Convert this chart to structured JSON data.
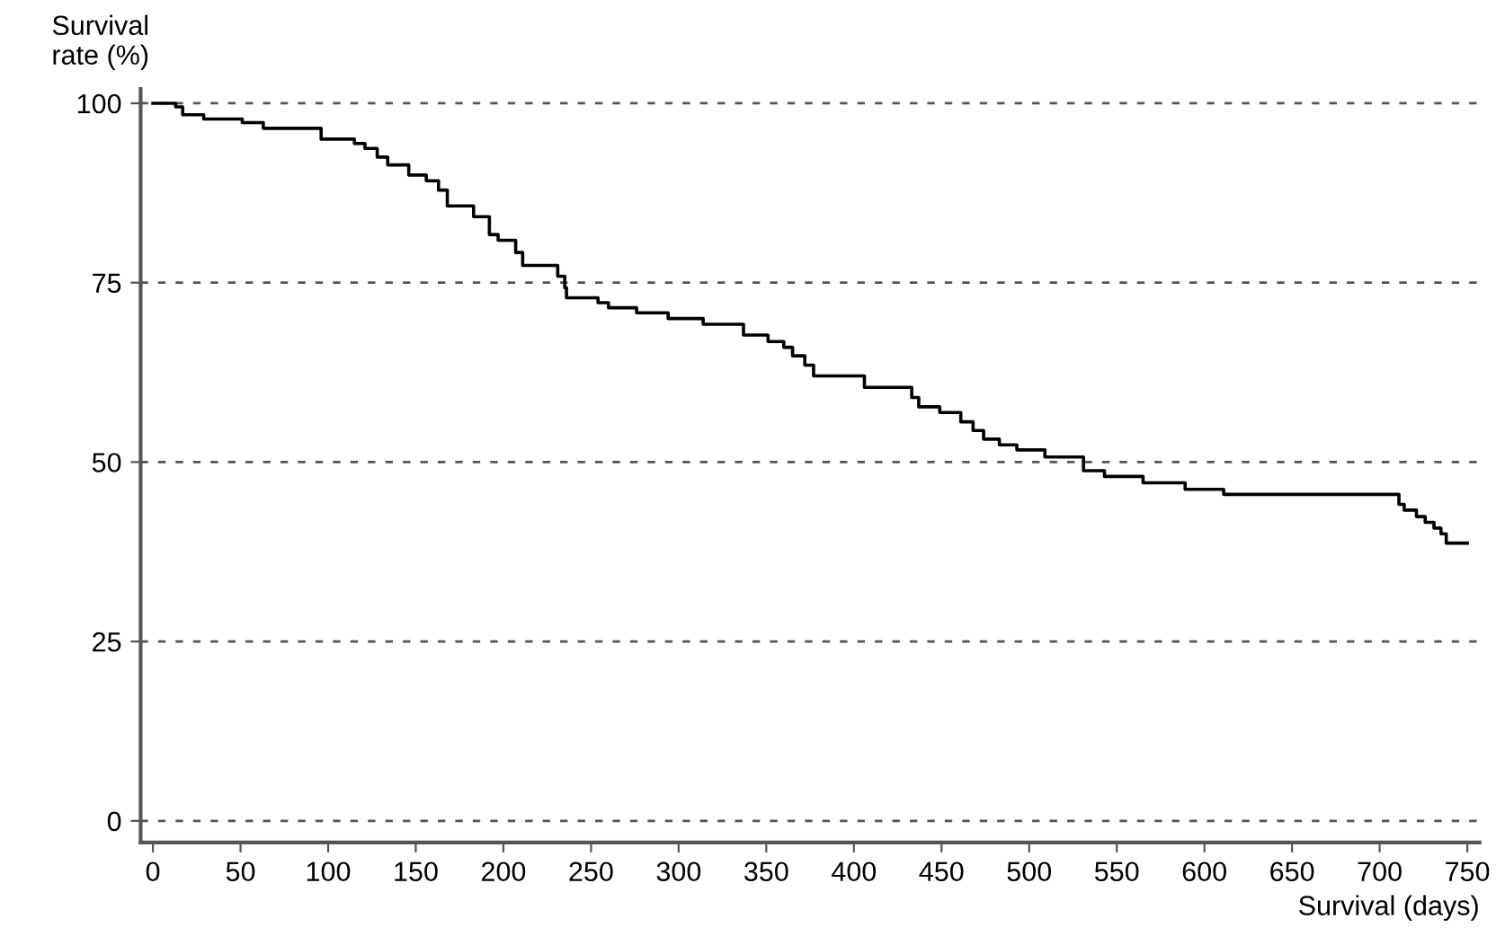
{
  "chart_data": {
    "type": "step",
    "xlabel": "Survival (days)",
    "ylabel": "Survival\nrate (%)",
    "xlim": [
      -7,
      757
    ],
    "ylim": [
      -3,
      102
    ],
    "xticks": [
      0,
      50,
      100,
      150,
      200,
      250,
      300,
      350,
      400,
      450,
      500,
      550,
      600,
      650,
      700,
      750
    ],
    "yticks": [
      0,
      25,
      50,
      75,
      100
    ],
    "grid": "y",
    "line_style": "solid",
    "marker": "none",
    "series": [
      {
        "color": "#000000",
        "x": [
          0,
          13,
          17,
          21,
          29,
          51,
          63,
          96,
          115,
          121,
          128,
          134,
          146,
          156,
          163,
          168,
          183,
          192,
          197,
          207,
          211,
          231,
          235,
          236,
          254,
          260,
          276,
          294,
          314,
          337,
          351,
          360,
          365,
          372,
          377,
          406,
          433,
          437,
          449,
          461,
          468,
          474,
          483,
          493,
          509,
          531,
          543,
          565,
          589,
          611,
          707,
          711,
          714,
          721,
          726,
          731,
          735,
          738,
          750
        ],
        "values": [
          100,
          99.5,
          98.4,
          98.4,
          97.8,
          97.3,
          96.5,
          95,
          94.4,
          93.7,
          92.5,
          91.4,
          90,
          89.2,
          87.9,
          85.7,
          84.2,
          81.7,
          80.9,
          79.2,
          77.4,
          75.9,
          74.3,
          72.9,
          72.2,
          71.5,
          70.8,
          70,
          69.2,
          67.7,
          66.8,
          66,
          64.8,
          63.5,
          62,
          60.4,
          59,
          57.7,
          56.9,
          55.6,
          54.4,
          53.2,
          52.4,
          51.7,
          50.7,
          48.8,
          48,
          47.1,
          46.2,
          45.5,
          45.5,
          44.1,
          43.3,
          42.4,
          41.6,
          40.8,
          40,
          38.7,
          38.7
        ]
      }
    ]
  }
}
